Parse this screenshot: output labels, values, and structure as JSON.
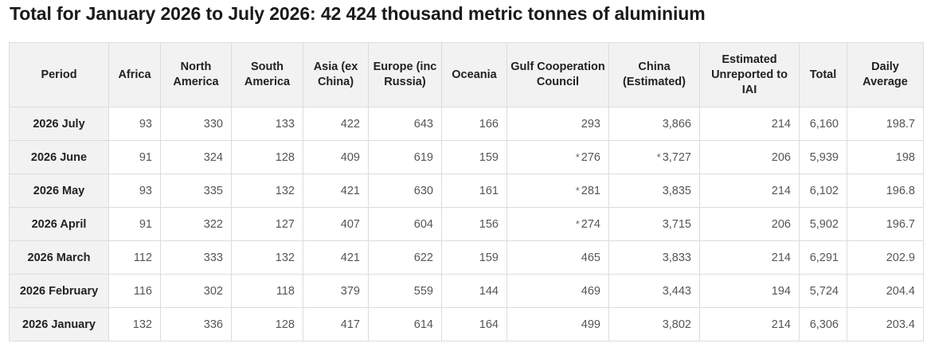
{
  "title": "Total for January 2026 to July 2026: 42 424 thousand metric tonnes of aluminium",
  "table": {
    "headers": [
      "Period",
      "Africa",
      "North America",
      "South America",
      "Asia (ex China)",
      "Europe (inc Russia)",
      "Oceania",
      "Gulf Cooperation Council",
      "China (Estimated)",
      "Estimated Unreported to IAI",
      "Total",
      "Daily Average"
    ],
    "rows": [
      {
        "period": "2026 July",
        "cells": [
          {
            "v": "93"
          },
          {
            "v": "330"
          },
          {
            "v": "133"
          },
          {
            "v": "422"
          },
          {
            "v": "643"
          },
          {
            "v": "166"
          },
          {
            "v": "293"
          },
          {
            "v": "3,866"
          },
          {
            "v": "214"
          },
          {
            "v": "6,160"
          },
          {
            "v": "198.7"
          }
        ]
      },
      {
        "period": "2026 June",
        "cells": [
          {
            "v": "91"
          },
          {
            "v": "324"
          },
          {
            "v": "128"
          },
          {
            "v": "409"
          },
          {
            "v": "619"
          },
          {
            "v": "159"
          },
          {
            "v": "276",
            "mark": "*"
          },
          {
            "v": "3,727",
            "mark": "*"
          },
          {
            "v": "206"
          },
          {
            "v": "5,939"
          },
          {
            "v": "198"
          }
        ]
      },
      {
        "period": "2026 May",
        "cells": [
          {
            "v": "93"
          },
          {
            "v": "335"
          },
          {
            "v": "132"
          },
          {
            "v": "421"
          },
          {
            "v": "630"
          },
          {
            "v": "161"
          },
          {
            "v": "281",
            "mark": "*"
          },
          {
            "v": "3,835"
          },
          {
            "v": "214"
          },
          {
            "v": "6,102"
          },
          {
            "v": "196.8"
          }
        ]
      },
      {
        "period": "2026 April",
        "cells": [
          {
            "v": "91"
          },
          {
            "v": "322"
          },
          {
            "v": "127"
          },
          {
            "v": "407"
          },
          {
            "v": "604"
          },
          {
            "v": "156"
          },
          {
            "v": "274",
            "mark": "*"
          },
          {
            "v": "3,715"
          },
          {
            "v": "206"
          },
          {
            "v": "5,902"
          },
          {
            "v": "196.7"
          }
        ]
      },
      {
        "period": "2026 March",
        "cells": [
          {
            "v": "112"
          },
          {
            "v": "333"
          },
          {
            "v": "132"
          },
          {
            "v": "421"
          },
          {
            "v": "622"
          },
          {
            "v": "159"
          },
          {
            "v": "465"
          },
          {
            "v": "3,833"
          },
          {
            "v": "214"
          },
          {
            "v": "6,291"
          },
          {
            "v": "202.9"
          }
        ]
      },
      {
        "period": "2026 February",
        "cells": [
          {
            "v": "116"
          },
          {
            "v": "302"
          },
          {
            "v": "118"
          },
          {
            "v": "379"
          },
          {
            "v": "559"
          },
          {
            "v": "144"
          },
          {
            "v": "469"
          },
          {
            "v": "3,443"
          },
          {
            "v": "194"
          },
          {
            "v": "5,724"
          },
          {
            "v": "204.4"
          }
        ]
      },
      {
        "period": "2026 January",
        "cells": [
          {
            "v": "132"
          },
          {
            "v": "336"
          },
          {
            "v": "128"
          },
          {
            "v": "417"
          },
          {
            "v": "614"
          },
          {
            "v": "164"
          },
          {
            "v": "499"
          },
          {
            "v": "3,802"
          },
          {
            "v": "214"
          },
          {
            "v": "6,306"
          },
          {
            "v": "203.4"
          }
        ]
      }
    ]
  }
}
